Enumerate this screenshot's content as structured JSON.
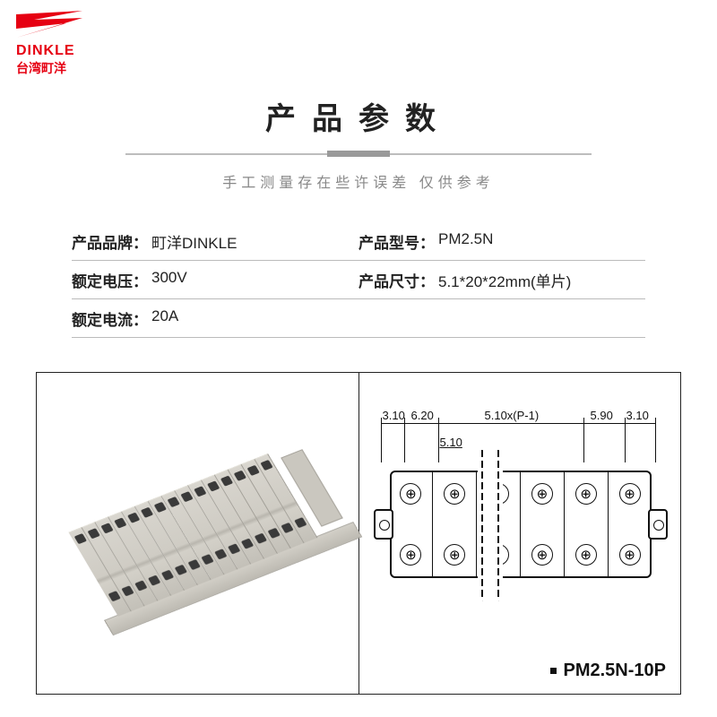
{
  "logo": {
    "brand_en": "DINKLE",
    "brand_cn": "台湾町洋",
    "brand_color": "#e60012"
  },
  "header": {
    "title": "产品参数",
    "subtitle": "手工测量存在些许误差 仅供参考",
    "title_color": "#222222",
    "subtitle_color": "#888888"
  },
  "specs": {
    "rows": [
      {
        "l_label": "产品品牌：",
        "l_value": "町洋DINKLE",
        "r_label": "产品型号：",
        "r_value": "PM2.5N"
      },
      {
        "l_label": "额定电压：",
        "l_value": "300V",
        "r_label": "产品尺寸：",
        "r_value": "5.1*20*22mm(单片)"
      },
      {
        "l_label": "额定电流：",
        "l_value": "20A",
        "r_label": "",
        "r_value": ""
      }
    ],
    "border_color": "#bbbbbb",
    "label_color": "#222222",
    "value_color": "#222222"
  },
  "diagram": {
    "border_color": "#222222",
    "terminal_block": {
      "slot_count": 15,
      "body_color": "#cfccc4",
      "slot_edge_color": "#a19e96"
    },
    "drawing": {
      "dimensions_top": [
        "3.10",
        "6.20",
        "5.10x(P-1)",
        "5.90",
        "3.10"
      ],
      "dimension_inner": "5.10",
      "columns": 6,
      "model_label": "PM2.5N-10P",
      "screw_symbol": "⊕",
      "line_color": "#111111"
    }
  },
  "page_bg": "#ffffff"
}
